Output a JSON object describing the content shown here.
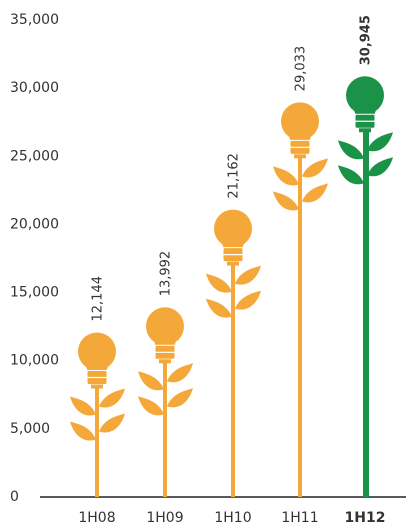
{
  "chart_data": {
    "type": "bulb",
    "categories": [
      "1H08",
      "1H09",
      "1H10",
      "1H11",
      "1H12"
    ],
    "values": [
      12144,
      13992,
      21162,
      29033,
      30945
    ],
    "value_labels": [
      "12,144",
      "13,992",
      "21,162",
      "29,033",
      "30,945"
    ],
    "color": "#f5a83a",
    "highlight": {
      "index": 4,
      "color": "#1a9247"
    },
    "ylim": [
      0,
      35000
    ],
    "yticks": [
      0,
      {
        "value": 5000,
        "label": "5,000"
      },
      {
        "value": 10000,
        "label": "10,000"
      },
      {
        "value": 15000,
        "label": "15,000"
      },
      {
        "value": 20000,
        "label": "20,000"
      },
      {
        "value": 25000,
        "label": "25,000"
      },
      {
        "value": 30000,
        "label": "30,000"
      },
      {
        "value": 35000,
        "label": "35,000"
      }
    ]
  }
}
